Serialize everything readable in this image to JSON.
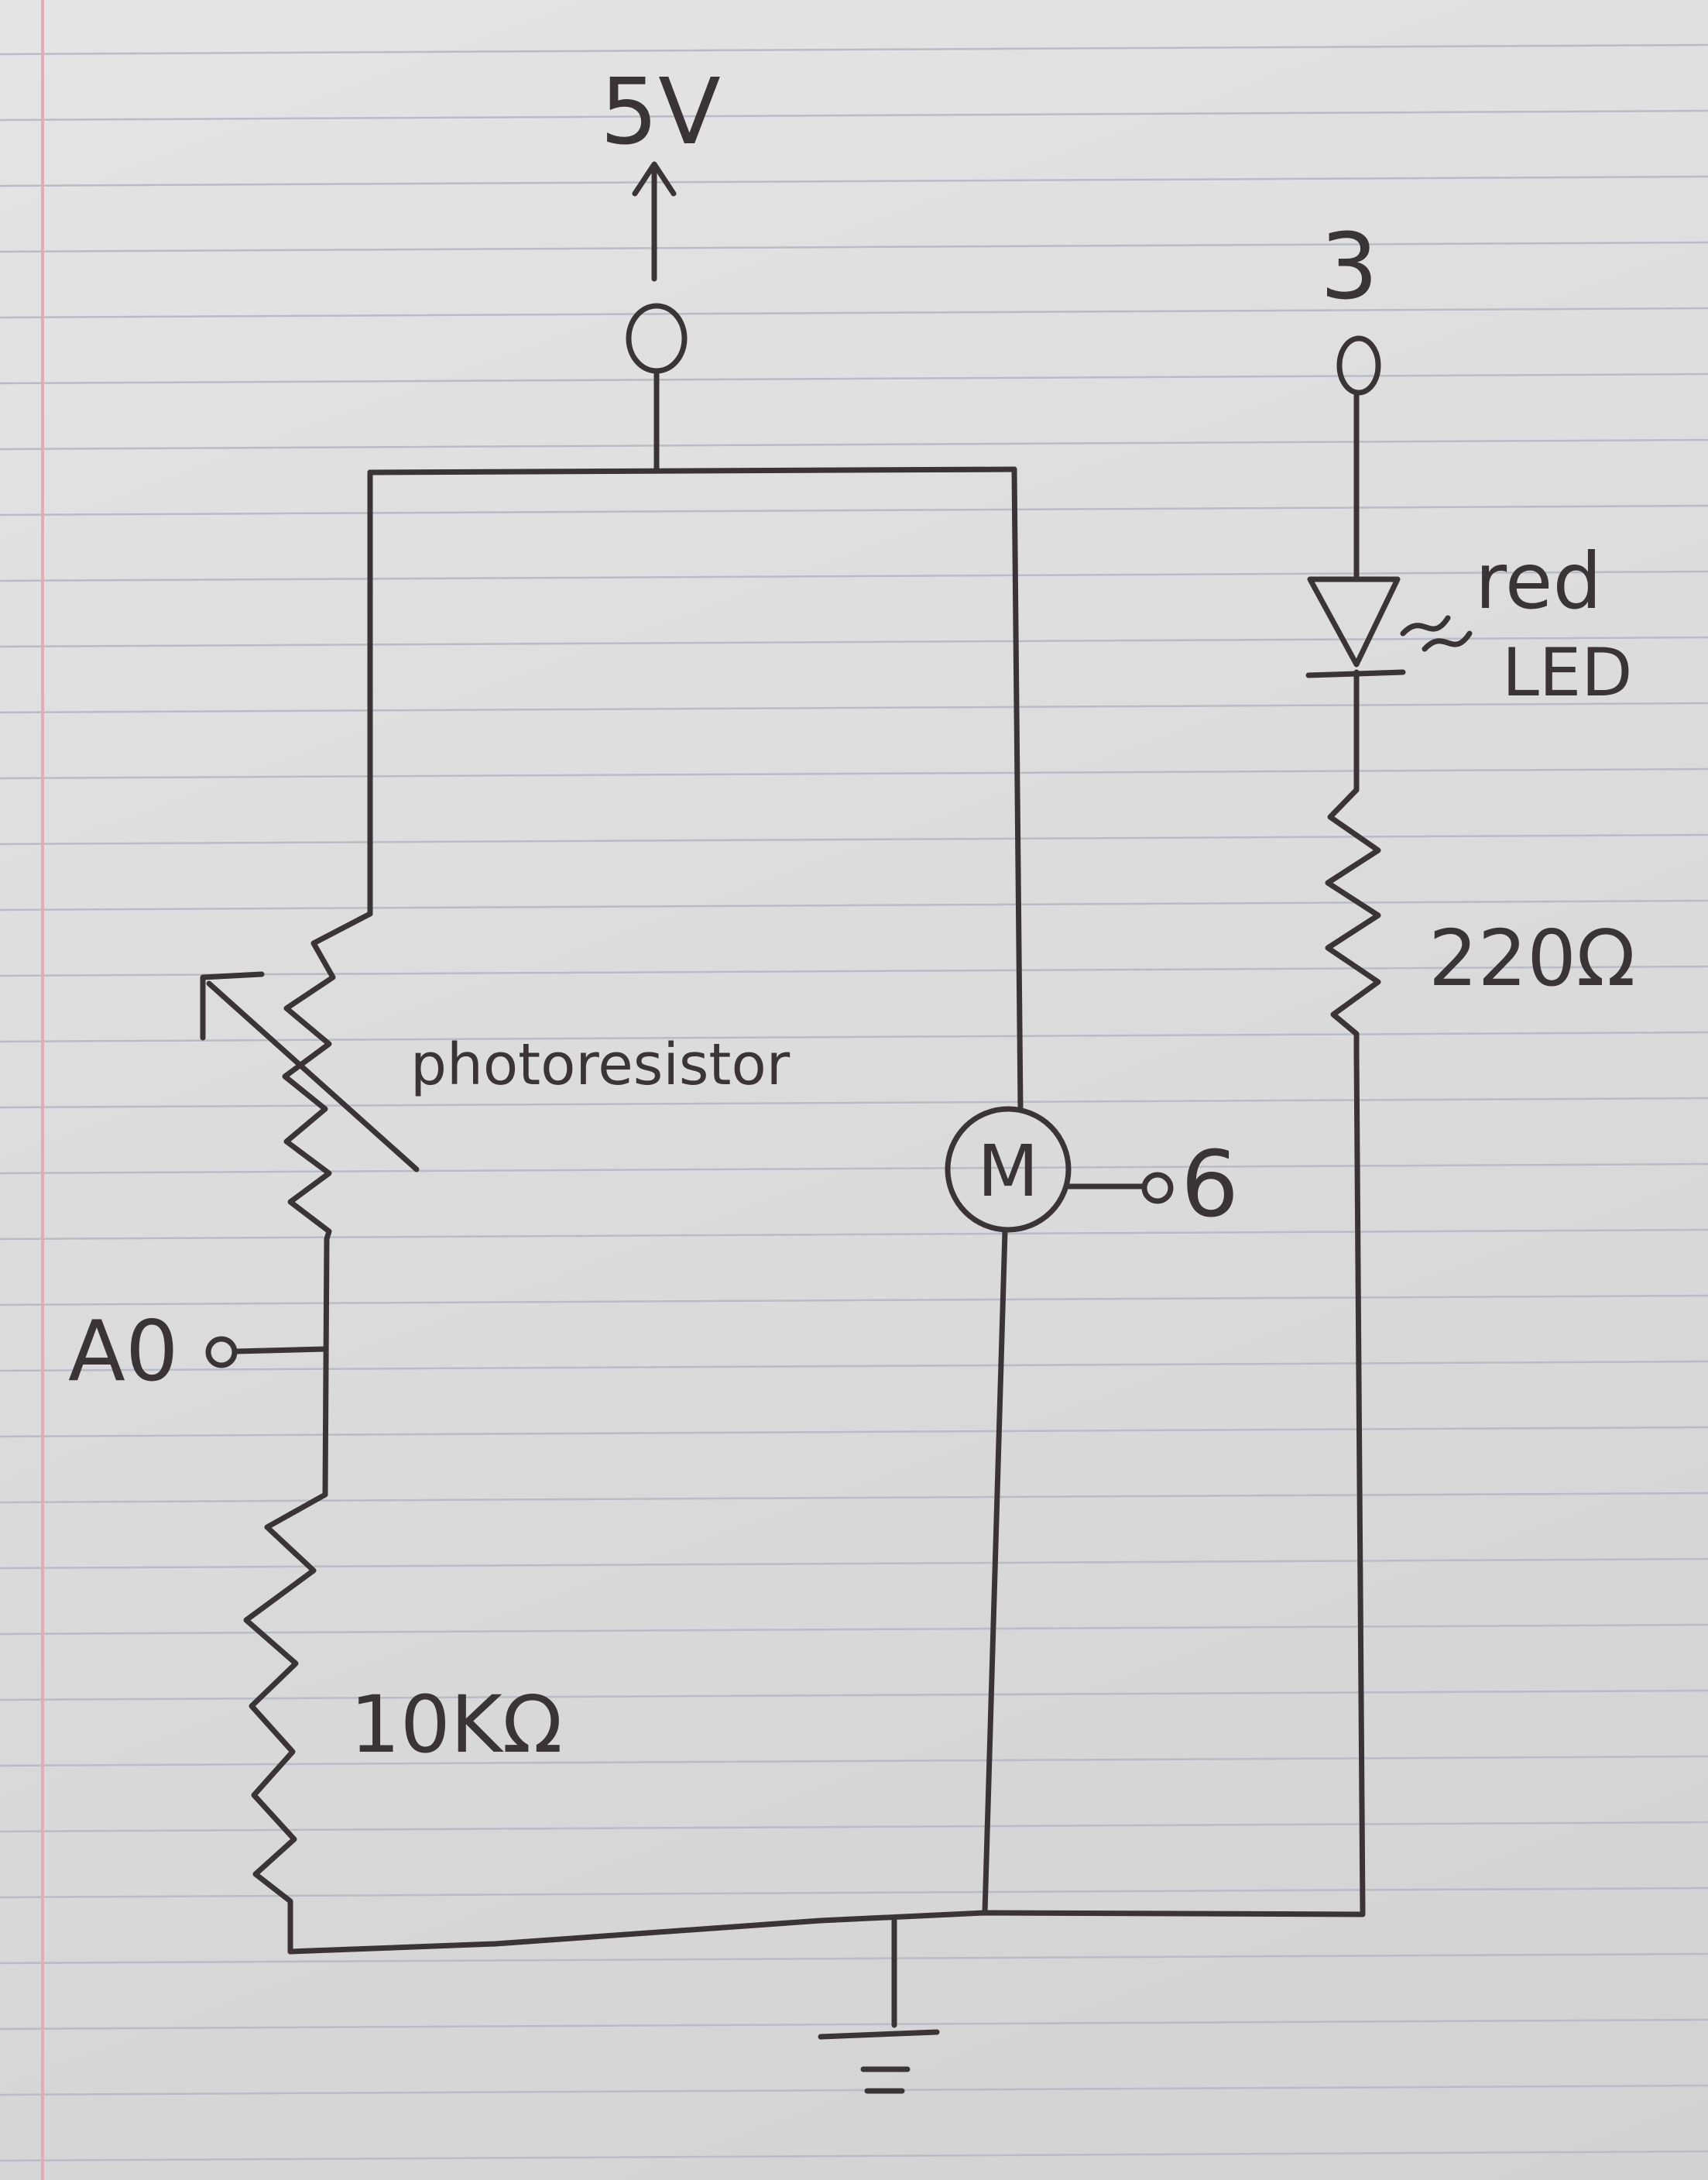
{
  "labels": {
    "supply": "5V",
    "pin_led": "3",
    "led_color": "red",
    "led_name": "LED",
    "led_resistor": "220Ω",
    "photoresistor": "photoresistor",
    "motor_symbol": "M",
    "motor_pin": "6",
    "analog_pin": "A0",
    "pulldown_resistor": "10KΩ"
  },
  "colors": {
    "ink": "#3a3436",
    "paper": "#dcdcdc",
    "rule_lines": "#b9bcc4",
    "margin_line": "#e6a9b8"
  }
}
